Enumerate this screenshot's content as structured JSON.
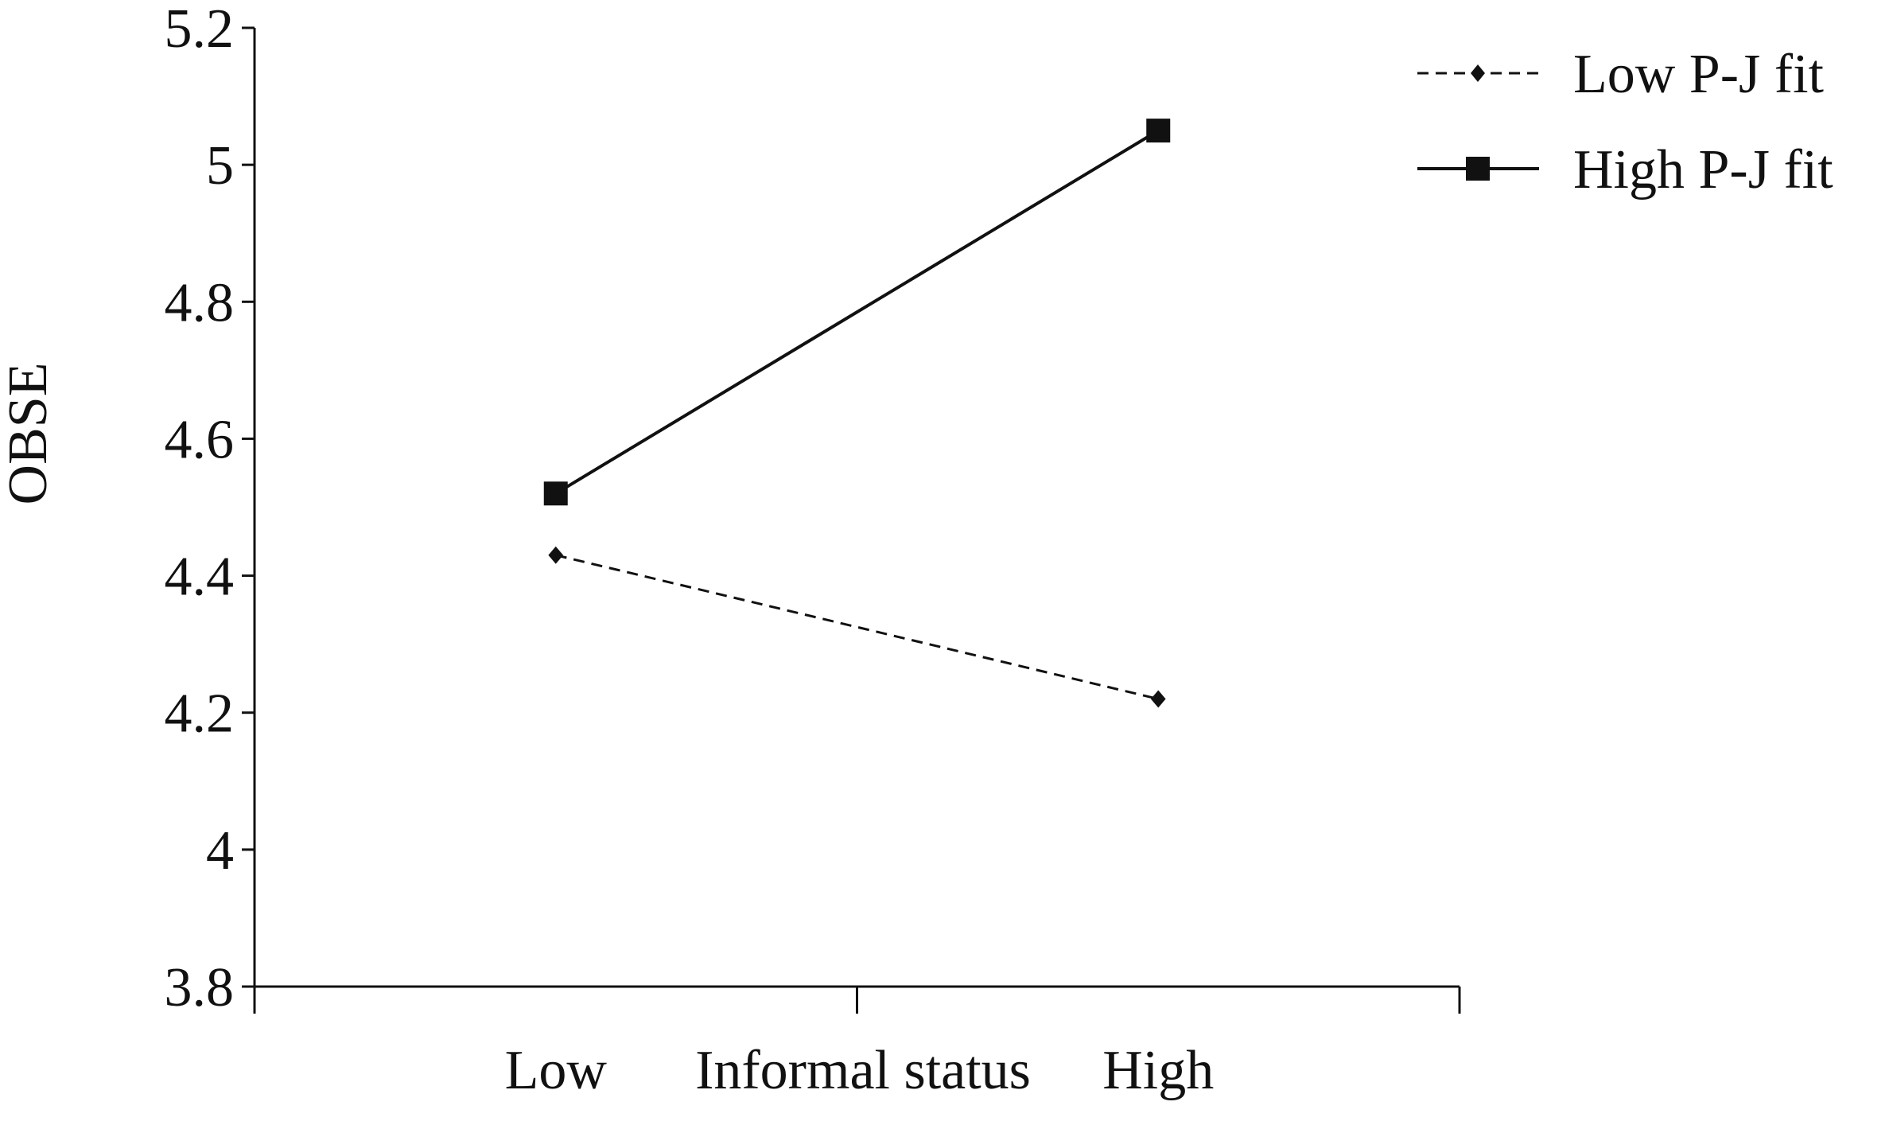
{
  "chart_data": {
    "type": "line",
    "title": "",
    "xlabel": "Informal status",
    "ylabel": "OBSE",
    "categories": [
      "Low",
      "High"
    ],
    "ylim": [
      3.8,
      5.2
    ],
    "yticks": [
      "3.8",
      "4",
      "4.2",
      "4.4",
      "4.6",
      "4.8",
      "5",
      "5.2"
    ],
    "yticks_values": [
      3.8,
      4.0,
      4.2,
      4.4,
      4.6,
      4.8,
      5.0,
      5.2
    ],
    "grid": false,
    "legend_position": "top-right",
    "series": [
      {
        "name": "Low P-J fit",
        "values": [
          4.43,
          4.22
        ],
        "line_style": "dashed",
        "marker": "diamond",
        "color": "#111111"
      },
      {
        "name": "High P-J fit",
        "values": [
          4.52,
          5.05
        ],
        "line_style": "solid",
        "marker": "square",
        "color": "#111111"
      }
    ]
  }
}
